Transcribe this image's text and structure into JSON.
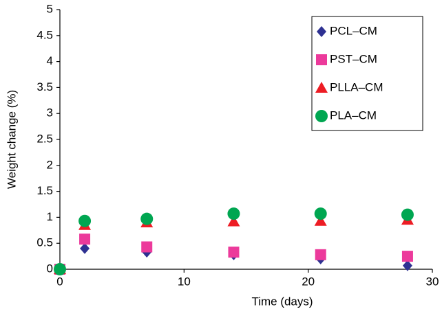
{
  "chart_data": {
    "type": "scatter",
    "x_label": "Time (days)",
    "y_label": "Weight change (%)",
    "x": [
      0,
      2,
      7,
      14,
      21,
      28
    ],
    "series": [
      {
        "name": "PCL–CM",
        "color": "#2e3192",
        "marker": "diamond",
        "values": [
          0,
          0.4,
          0.33,
          0.28,
          0.2,
          0.07
        ]
      },
      {
        "name": "PST–CM",
        "color": "#ec3a9b",
        "marker": "square",
        "values": [
          0,
          0.58,
          0.43,
          0.33,
          0.28,
          0.25
        ]
      },
      {
        "name": "PLLA–CM",
        "color": "#ed1c24",
        "marker": "triangle",
        "values": [
          0,
          0.85,
          0.9,
          0.92,
          0.93,
          0.95
        ]
      },
      {
        "name": "PLA–CM",
        "color": "#00a651",
        "marker": "circle",
        "values": [
          0,
          0.93,
          0.97,
          1.07,
          1.07,
          1.05
        ]
      }
    ],
    "xlim": [
      0,
      30
    ],
    "xticks": [
      0,
      10,
      20,
      30
    ],
    "ylim": [
      0,
      5
    ],
    "yticks": [
      0,
      0.5,
      1,
      1.5,
      2,
      2.5,
      3,
      3.5,
      4,
      4.5,
      5
    ],
    "grid": false,
    "legend": "upper right"
  }
}
